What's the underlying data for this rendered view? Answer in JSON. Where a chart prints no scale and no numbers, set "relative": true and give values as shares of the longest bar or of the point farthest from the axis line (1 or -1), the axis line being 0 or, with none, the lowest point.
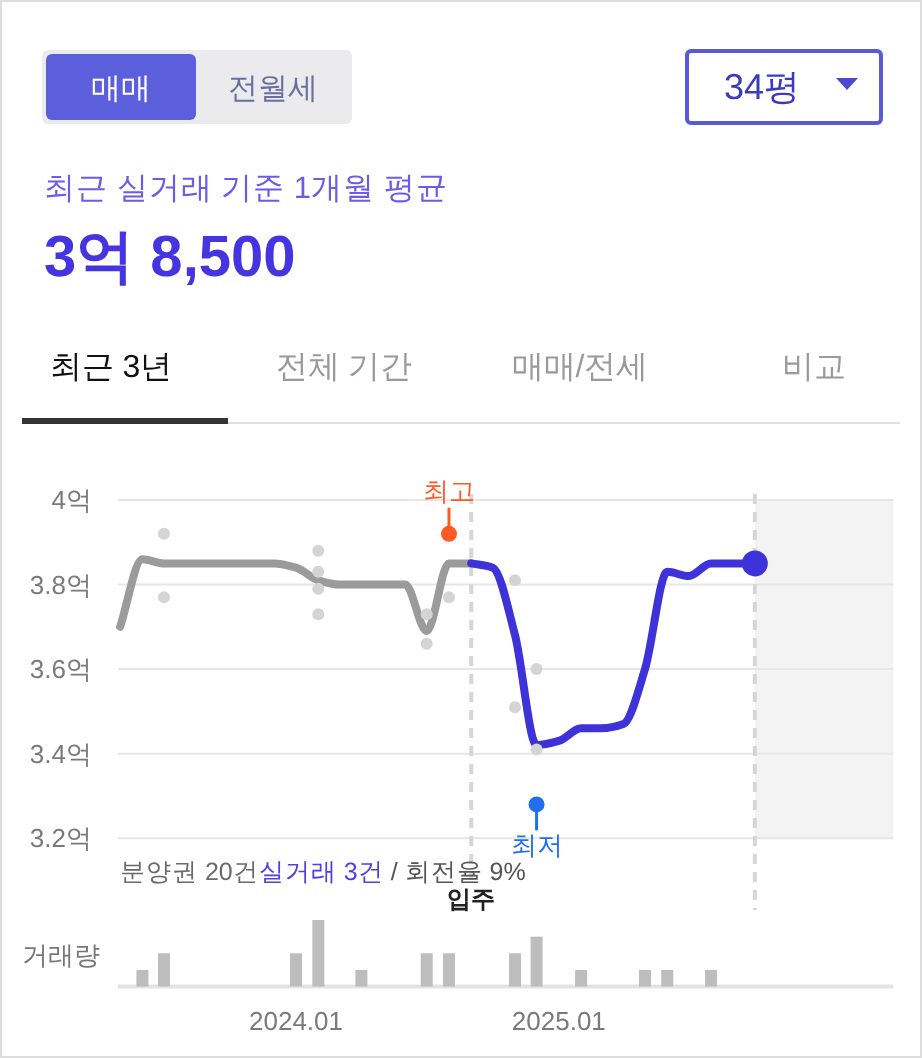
{
  "chart_data": [
    {
      "type": "other",
      "title": "최근 실거래 기준 1개월 평균",
      "subtitle": "3억 8,500",
      "annotations": [
        "매매",
        "전월세",
        "34평",
        "최근 3년",
        "전체 기간",
        "매매/전세",
        "비교"
      ]
    },
    {
      "type": "line",
      "xlim": [
        "2023-04-28",
        "2026-04-12"
      ],
      "ylim": [
        3.2,
        4
      ],
      "yticks": [
        {
          "value": 3.2,
          "label": "3.2억"
        },
        {
          "value": 3.4,
          "label": "3.4억"
        },
        {
          "value": 3.6,
          "label": "3.6억"
        },
        {
          "value": 3.8,
          "label": "3.8억"
        },
        {
          "value": 4,
          "label": "4억"
        }
      ],
      "tick_labels": "y",
      "grid": "y",
      "series": [
        {
          "type": "line",
          "color": "#9b9b9b",
          "x": [
            "2023-05",
            "2023-06",
            "2023-07",
            "2023-08",
            "2023-09",
            "2023-10",
            "2023-11",
            "2023-12",
            "2024-01",
            "2024-02",
            "2024-03",
            "2024-04",
            "2024-05",
            "2024-06",
            "2024-07",
            "2024-08",
            "2024-09"
          ],
          "values": [
            3.7,
            3.86,
            3.85,
            3.85,
            3.85,
            3.85,
            3.85,
            3.85,
            3.84,
            3.81,
            3.8,
            3.8,
            3.8,
            3.8,
            3.69,
            3.85,
            3.85
          ]
        },
        {
          "type": "line",
          "color": "#3e33d8",
          "x": [
            "2024-09",
            "2024-10",
            "2024-11",
            "2024-12",
            "2025-01",
            "2025-02",
            "2025-03",
            "2025-04",
            "2025-05",
            "2025-06",
            "2025-07",
            "2025-08",
            "2025-09",
            "2025-10"
          ],
          "values": [
            3.85,
            3.84,
            3.68,
            3.42,
            3.43,
            3.46,
            3.46,
            3.47,
            3.6,
            3.83,
            3.82,
            3.85,
            3.85,
            3.85
          ]
        },
        {
          "type": "scatter",
          "marker": "circle",
          "color": "#d4d4d4",
          "x": [
            "2023-07",
            "2023-07",
            "2024-02",
            "2024-02",
            "2024-02",
            "2024-02",
            "2024-07",
            "2024-07",
            "2024-08",
            "2024-11",
            "2024-11",
            "2024-12",
            "2024-12"
          ],
          "values": [
            3.92,
            3.77,
            3.88,
            3.83,
            3.79,
            3.73,
            3.73,
            3.66,
            3.77,
            3.81,
            3.51,
            3.6,
            3.41
          ]
        },
        {
          "type": "scatter",
          "marker": "circle",
          "color": "#3e33d8",
          "x": [
            "2025-10"
          ],
          "values": [
            3.85
          ]
        }
      ],
      "ref_lines": [
        {
          "axis": "x",
          "value": "2024-09",
          "label": "입주",
          "color": "#d6d6d6",
          "line_style": "dashed"
        },
        {
          "axis": "x",
          "value": "2025-10",
          "color": "#d6d6d6",
          "line_style": "dashed"
        }
      ],
      "bands": [
        {
          "axis": "x",
          "from": "2025-10",
          "to": "2026-04-12",
          "color": "#f3f3f3"
        }
      ],
      "annotations": [
        {
          "text": "최고",
          "x": "2024-08",
          "y": 3.92
        },
        {
          "text": "최저",
          "x": "2024-12",
          "y": 3.28
        },
        "분양권 20건",
        "실거래 3건",
        "/ 회전율 9%"
      ]
    },
    {
      "type": "bar",
      "relative": true,
      "ylabel": "거래량",
      "color": "#bdbdbd",
      "xlim": [
        "2023-04-28",
        "2026-04-12"
      ],
      "xticks": [
        {
          "value": "2024-01",
          "label": "2024.01"
        },
        {
          "value": "2025-01",
          "label": "2025.01"
        }
      ],
      "tick_labels": "x",
      "x": [
        "2023-06",
        "2023-07",
        "2024-01",
        "2024-02",
        "2024-04",
        "2024-07",
        "2024-08",
        "2024-11",
        "2024-12",
        "2025-02",
        "2025-05",
        "2025-06",
        "2025-08"
      ],
      "values": [
        0.25,
        0.5,
        0.5,
        1,
        0.25,
        0.5,
        0.5,
        0.5,
        0.75,
        0.25,
        0.25,
        0.25,
        0.25
      ]
    }
  ]
}
